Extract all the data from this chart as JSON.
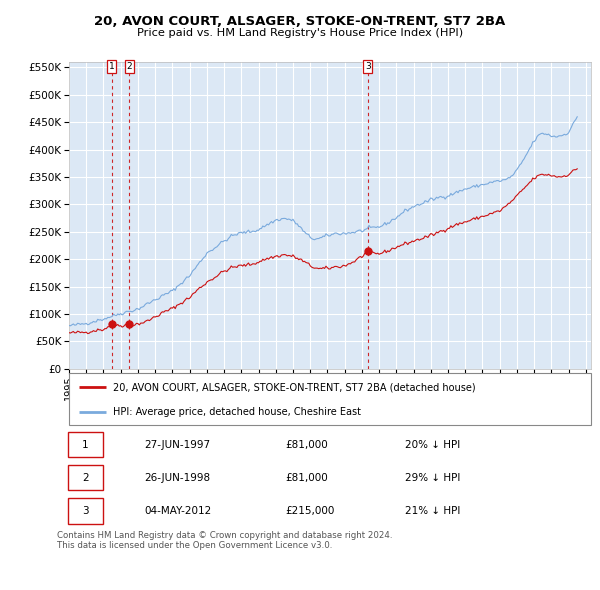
{
  "title": "20, AVON COURT, ALSAGER, STOKE-ON-TRENT, ST7 2BA",
  "subtitle": "Price paid vs. HM Land Registry's House Price Index (HPI)",
  "ylim": [
    0,
    560000
  ],
  "yticks": [
    0,
    50000,
    100000,
    150000,
    200000,
    250000,
    300000,
    350000,
    400000,
    450000,
    500000,
    550000
  ],
  "xlim_start": 1995.0,
  "xlim_end": 2025.3,
  "bg_color": "#dce8f5",
  "grid_color": "#ffffff",
  "sale_dates": [
    1997.49,
    1998.49,
    2012.34
  ],
  "sale_prices": [
    81000,
    81000,
    215000
  ],
  "sale_labels": [
    "1",
    "2",
    "3"
  ],
  "hpi_line_color": "#7aaadd",
  "price_line_color": "#cc1111",
  "sale_dot_color": "#cc1111",
  "vline_color": "#cc1111",
  "legend_label_price": "20, AVON COURT, ALSAGER, STOKE-ON-TRENT, ST7 2BA (detached house)",
  "legend_label_hpi": "HPI: Average price, detached house, Cheshire East",
  "table_data": [
    [
      "1",
      "27-JUN-1997",
      "£81,000",
      "20% ↓ HPI"
    ],
    [
      "2",
      "26-JUN-1998",
      "£81,000",
      "29% ↓ HPI"
    ],
    [
      "3",
      "04-MAY-2012",
      "£215,000",
      "21% ↓ HPI"
    ]
  ],
  "footer": "Contains HM Land Registry data © Crown copyright and database right 2024.\nThis data is licensed under the Open Government Licence v3.0."
}
